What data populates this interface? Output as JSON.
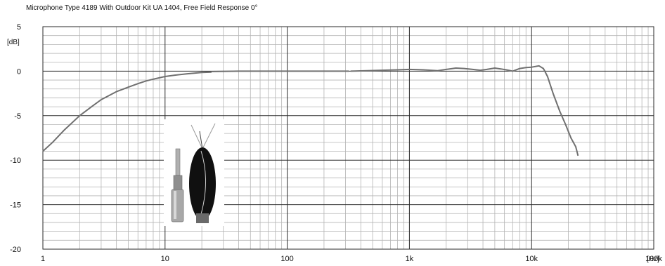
{
  "chart_data": {
    "type": "line",
    "title": "Microphone Type 4189 With Outdoor Kit UA 1404, Free Field Response 0°",
    "x_unit": "[Hz]",
    "y_unit": "[dB]",
    "x_scale": "log",
    "xlim": [
      1,
      100000
    ],
    "ylim": [
      -20,
      5
    ],
    "x_tick_values": [
      1,
      10,
      100,
      1000,
      10000,
      100000
    ],
    "x_tick_labels": [
      "1",
      "10",
      "100",
      "1k",
      "10k",
      "100k"
    ],
    "y_tick_values": [
      5,
      0,
      -5,
      -10,
      -15,
      -20
    ],
    "y_tick_labels": [
      "5",
      "0",
      "-5",
      "-10",
      "-15",
      "-20"
    ],
    "grid": true,
    "legend": "none",
    "line_color": "#707070",
    "series": [
      {
        "segment": "low-frequency",
        "x": [
          1,
          1.2,
          1.5,
          2,
          2.5,
          3,
          4,
          5,
          6,
          7,
          8,
          10,
          12,
          15,
          20,
          24
        ],
        "y": [
          -9.0,
          -8.0,
          -6.6,
          -5.0,
          -4.0,
          -3.2,
          -2.3,
          -1.8,
          -1.4,
          -1.1,
          -0.9,
          -0.6,
          -0.45,
          -0.3,
          -0.15,
          -0.1
        ]
      },
      {
        "segment": "mid",
        "x": [
          24,
          40,
          80,
          150,
          320
        ],
        "y": [
          -0.05,
          0.0,
          0.0,
          0.0,
          0.0
        ]
      },
      {
        "segment": "high-frequency",
        "x": [
          330,
          450,
          600,
          800,
          1000,
          1300,
          1700,
          2000,
          2400,
          2800,
          3300,
          3800,
          4300,
          5000,
          5600,
          6200,
          7000,
          8000,
          9000,
          10000,
          11500,
          12500,
          13500,
          15000,
          17000,
          19000,
          21000,
          23000,
          24000
        ],
        "y": [
          0.0,
          0.05,
          0.1,
          0.15,
          0.2,
          0.15,
          0.05,
          0.2,
          0.35,
          0.3,
          0.2,
          0.1,
          0.2,
          0.35,
          0.25,
          0.15,
          0.0,
          0.3,
          0.4,
          0.45,
          0.6,
          0.3,
          -0.6,
          -2.5,
          -4.5,
          -6.0,
          -7.5,
          -8.5,
          -9.5
        ]
      }
    ]
  },
  "inset_image": {
    "description_icon": "microphone-with-windscreen-photo",
    "windscreen_color": "#111111",
    "body_color": "#9a9a9a"
  }
}
